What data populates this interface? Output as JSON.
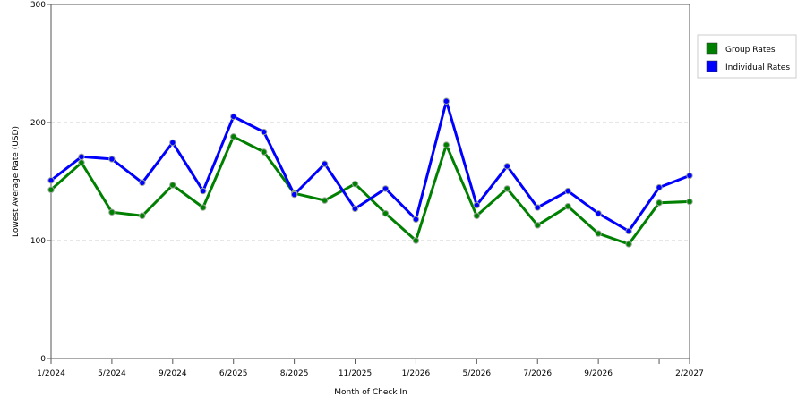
{
  "chart_data": {
    "type": "line",
    "xlabel": "Month of Check In",
    "ylabel": "Lowest Average Rate (USD)",
    "ylim": [
      0,
      300
    ],
    "yticks": [
      0,
      100,
      200,
      300
    ],
    "grid": "horizontal dashed",
    "legend_position": "right",
    "x_tick_labels": [
      "1/2024",
      "5/2024",
      "9/2024",
      "6/2025",
      "8/2025",
      "11/2025",
      "1/2026",
      "5/2026",
      "7/2026",
      "9/2026",
      "",
      "2/2027"
    ],
    "x_tick_label_points": [
      0,
      2,
      4,
      6,
      8,
      10,
      12,
      14,
      16,
      18,
      20,
      21
    ],
    "x_ticks_unlabeled_points": [
      20
    ],
    "series": [
      {
        "name": "Group Rates",
        "color": "#008000",
        "values": [
          143,
          166,
          124,
          121,
          147,
          128,
          188,
          175,
          140,
          134,
          148,
          123,
          100,
          181,
          121,
          144,
          113,
          129,
          106,
          97,
          132,
          133
        ]
      },
      {
        "name": "Individual Rates",
        "color": "#0000ff",
        "values": [
          151,
          171,
          169,
          149,
          183,
          142,
          205,
          192,
          139,
          165,
          127,
          144,
          118,
          218,
          130,
          163,
          128,
          142,
          123,
          108,
          145,
          155
        ]
      }
    ]
  }
}
